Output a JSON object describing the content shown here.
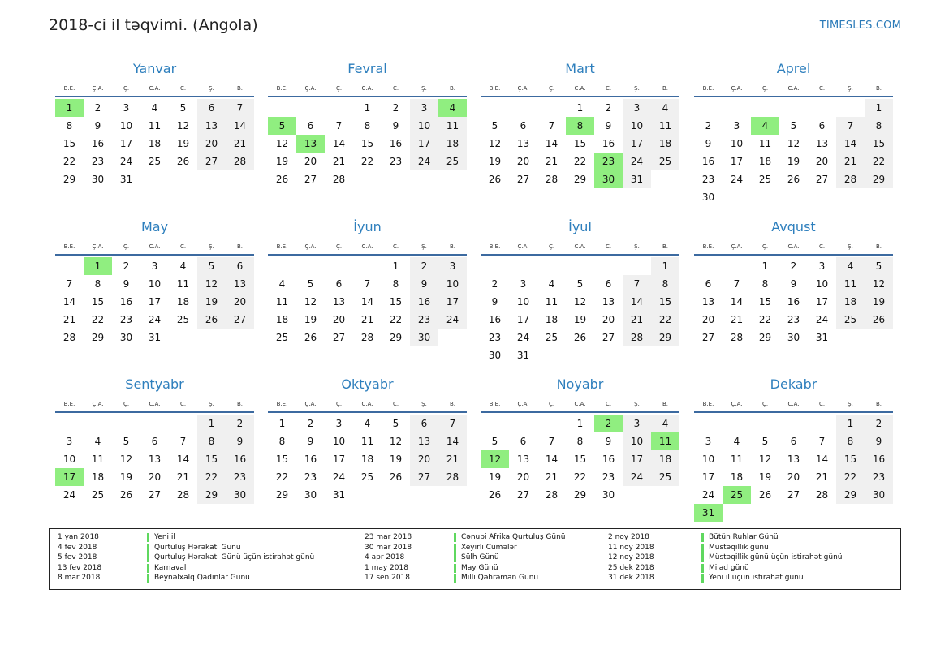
{
  "header": {
    "title": "2018-ci il təqvimi. (Angola)",
    "site": "TIMESLES.COM"
  },
  "weekdays": [
    "B.E.",
    "Ç.A.",
    "Ç.",
    "C.A.",
    "C.",
    "Ş.",
    "B."
  ],
  "months": [
    {
      "name": "Yanvar",
      "offset": 0,
      "days": 31,
      "holidays": [
        1
      ]
    },
    {
      "name": "Fevral",
      "offset": 3,
      "days": 28,
      "holidays": [
        4,
        5,
        13
      ]
    },
    {
      "name": "Mart",
      "offset": 3,
      "days": 31,
      "holidays": [
        8,
        23,
        30
      ]
    },
    {
      "name": "Aprel",
      "offset": 6,
      "days": 30,
      "holidays": [
        4
      ]
    },
    {
      "name": "May",
      "offset": 1,
      "days": 31,
      "holidays": [
        1
      ]
    },
    {
      "name": "İyun",
      "offset": 4,
      "days": 30,
      "holidays": []
    },
    {
      "name": "İyul",
      "offset": 6,
      "days": 31,
      "holidays": []
    },
    {
      "name": "Avqust",
      "offset": 2,
      "days": 31,
      "holidays": []
    },
    {
      "name": "Sentyabr",
      "offset": 5,
      "days": 30,
      "holidays": [
        17
      ]
    },
    {
      "name": "Oktyabr",
      "offset": 0,
      "days": 31,
      "holidays": []
    },
    {
      "name": "Noyabr",
      "offset": 3,
      "days": 30,
      "holidays": [
        2,
        11,
        12
      ]
    },
    {
      "name": "Dekabr",
      "offset": 5,
      "days": 31,
      "holidays": [
        25,
        31
      ]
    }
  ],
  "legend": [
    {
      "date": "1 yan 2018",
      "name": "Yeni il"
    },
    {
      "date": "4 fev 2018",
      "name": "Qurtuluş Hərəkatı Günü"
    },
    {
      "date": "5 fev 2018",
      "name": "Qurtuluş Hərəkatı Günü üçün istirahət günü"
    },
    {
      "date": "13 fev 2018",
      "name": "Karnaval"
    },
    {
      "date": "8 mar 2018",
      "name": "Beynəlxalq Qadınlar Günü"
    },
    {
      "date": "23 mar 2018",
      "name": "Cənubi Afrika Qurtuluş Günü"
    },
    {
      "date": "30 mar 2018",
      "name": "Xeyirli Cümələr"
    },
    {
      "date": "4 apr 2018",
      "name": "Sülh Günü"
    },
    {
      "date": "1 may 2018",
      "name": "May Günü"
    },
    {
      "date": "17 sen 2018",
      "name": "Milli Qəhrəman Günü"
    },
    {
      "date": "2 noy 2018",
      "name": "Bütün Ruhlar Günü"
    },
    {
      "date": "11 noy 2018",
      "name": "Müstəqillik günü"
    },
    {
      "date": "12 noy 2018",
      "name": "Müstəqillik günü üçün istirahət günü"
    },
    {
      "date": "25 dek 2018",
      "name": "Milad günü"
    },
    {
      "date": "31 dek 2018",
      "name": "Yeni il üçün istirahət günü"
    }
  ]
}
